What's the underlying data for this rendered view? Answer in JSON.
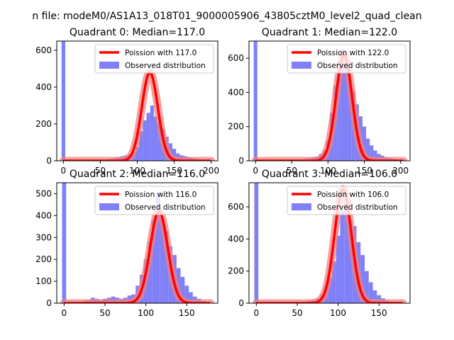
{
  "figure": {
    "suptitle": "n file: modeM0/AS1A13_018T01_9000005906_43805cztM0_level2_quad_clean"
  },
  "colors": {
    "hist": "#8080f8",
    "poisson": "#ff0000",
    "poisson_glow": "#f08080"
  },
  "chart_data": [
    {
      "type": "bar",
      "title": "Quadrant 0: Median=117.0",
      "xlim": [
        -9,
        209
      ],
      "ylim": [
        0,
        650
      ],
      "xticks": [
        0,
        50,
        100,
        150,
        200
      ],
      "yticks": [
        0,
        200,
        400,
        600
      ],
      "legend": {
        "placement": "top-right",
        "entries": [
          "Poission with 117.0",
          "Observed distribution"
        ]
      },
      "spike": {
        "x": 0,
        "value": 650
      },
      "poisson_mean": 117.0,
      "poisson_peak": 480,
      "histogram": {
        "x": [
          60,
          65,
          70,
          75,
          80,
          85,
          90,
          95,
          100,
          105,
          110,
          115,
          120,
          125,
          130,
          135,
          140,
          145,
          150,
          155,
          160,
          165,
          170,
          175,
          180,
          185,
          190,
          195,
          200
        ],
        "values": [
          5,
          10,
          15,
          20,
          25,
          30,
          35,
          45,
          75,
          160,
          220,
          260,
          300,
          240,
          210,
          170,
          130,
          95,
          65,
          40,
          30,
          25,
          20,
          15,
          10,
          8,
          5,
          3,
          2
        ]
      }
    },
    {
      "type": "bar",
      "title": "Quadrant 1: Median=122.0",
      "xlim": [
        -9,
        213
      ],
      "ylim": [
        0,
        700
      ],
      "xticks": [
        0,
        50,
        100,
        150,
        200
      ],
      "yticks": [
        0,
        200,
        400,
        600
      ],
      "legend": {
        "placement": "top-right",
        "entries": [
          "Poission with 122.0",
          "Observed distribution"
        ]
      },
      "spike": {
        "x": 0,
        "value": 700
      },
      "poisson_mean": 122.0,
      "poisson_peak": 620,
      "histogram": {
        "x": [
          60,
          65,
          70,
          75,
          80,
          85,
          90,
          95,
          100,
          105,
          110,
          115,
          120,
          125,
          130,
          135,
          140,
          145,
          150,
          155,
          160,
          165,
          170,
          175,
          180,
          185,
          190,
          195,
          200
        ],
        "values": [
          5,
          8,
          12,
          15,
          20,
          25,
          40,
          60,
          120,
          280,
          440,
          520,
          650,
          600,
          480,
          410,
          330,
          260,
          200,
          130,
          90,
          60,
          40,
          30,
          20,
          15,
          10,
          5,
          3
        ]
      }
    },
    {
      "type": "bar",
      "title": "Quadrant 2: Median=116.0",
      "xlim": [
        -9,
        188
      ],
      "ylim": [
        0,
        550
      ],
      "xticks": [
        0,
        50,
        100,
        150
      ],
      "yticks": [
        0,
        100,
        200,
        300,
        400,
        500
      ],
      "legend": {
        "placement": "top-right",
        "entries": [
          "Poission with 116.0",
          "Observed distribution"
        ]
      },
      "spike": {
        "x": 0,
        "value": 550
      },
      "poisson_mean": 116.0,
      "poisson_peak": 420,
      "histogram": {
        "x": [
          20,
          25,
          30,
          35,
          40,
          45,
          50,
          55,
          60,
          65,
          70,
          75,
          80,
          85,
          90,
          95,
          100,
          105,
          110,
          115,
          120,
          125,
          130,
          135,
          140,
          145,
          150,
          155,
          160,
          165,
          170,
          175,
          180
        ],
        "values": [
          5,
          10,
          15,
          25,
          20,
          15,
          20,
          25,
          30,
          25,
          20,
          25,
          35,
          40,
          80,
          130,
          200,
          280,
          380,
          500,
          390,
          330,
          260,
          220,
          160,
          120,
          80,
          50,
          30,
          20,
          10,
          5,
          2
        ]
      }
    },
    {
      "type": "bar",
      "title": "Quadrant 3: Median=106.0",
      "xlim": [
        -9,
        188
      ],
      "ylim": [
        0,
        750
      ],
      "xticks": [
        0,
        50,
        100,
        150
      ],
      "yticks": [
        0,
        200,
        400,
        600
      ],
      "legend": {
        "placement": "top-right",
        "entries": [
          "Poission with 106.0",
          "Observed distribution"
        ]
      },
      "spike": {
        "x": 0,
        "value": 750
      },
      "poisson_mean": 106.0,
      "poisson_peak": 710,
      "histogram": {
        "x": [
          50,
          55,
          60,
          65,
          70,
          75,
          80,
          85,
          90,
          95,
          100,
          105,
          110,
          115,
          120,
          125,
          130,
          135,
          140,
          145,
          150,
          155,
          160,
          165,
          170
        ],
        "values": [
          5,
          8,
          10,
          15,
          20,
          30,
          50,
          90,
          160,
          260,
          420,
          580,
          620,
          520,
          480,
          380,
          300,
          200,
          130,
          80,
          50,
          30,
          15,
          8,
          3
        ]
      }
    }
  ]
}
